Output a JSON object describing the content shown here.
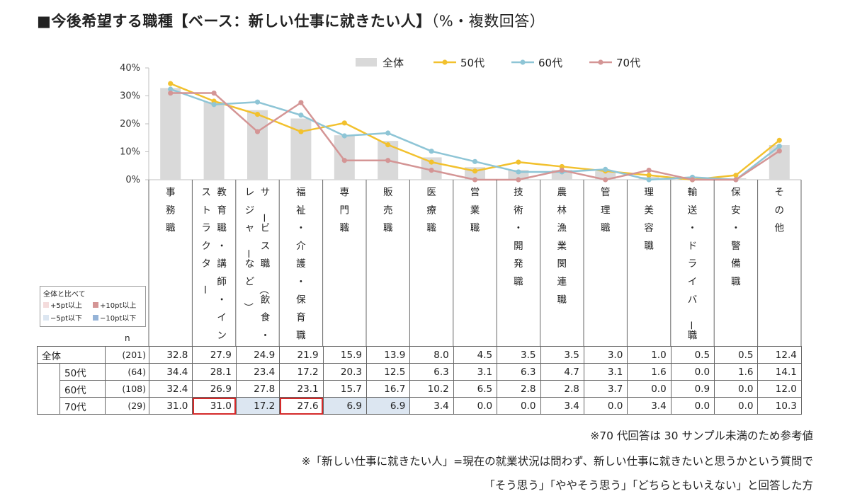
{
  "title": "■今後希望する職種【ベース：新しい仕事に就きたい人】",
  "title_suffix": "（%・複数回答）",
  "colors": {
    "total_bar": "#d9d9d9",
    "age50": "#f2c12e",
    "age60": "#8ec5d6",
    "age70": "#d49595",
    "grid_axis": "#bfbfbf",
    "highlight_red": "#d42a2a",
    "pink_light": "#f4dcdc",
    "pink_dark": "#d49595",
    "blue_light": "#dce6f1",
    "blue_dark": "#95b3d7"
  },
  "legend_box": {
    "title": "全体と比べて",
    "items": [
      "+5pt以上",
      "+10pt以上",
      "−5pt以下",
      "−10pt以下"
    ]
  },
  "chart_data": {
    "type": "bar",
    "categories": [
      "事務職",
      "教育職・講師・インストラクター",
      "サービス職（飲食・レジャーなど）",
      "福祉・介護・保育職",
      "専門職",
      "販売職",
      "医療職",
      "営業職",
      "技術・開発職",
      "農林漁業関連職",
      "管理職",
      "理美容職",
      "輸送・ドライバー職",
      "保安・警備職",
      "その他"
    ],
    "category_label_lines": [
      [
        "事務職"
      ],
      [
        "教育職・講師・イン",
        "ストラクター"
      ],
      [
        "サービス職（飲食・",
        "レジャーなど）"
      ],
      [
        "福祉・介護・保育職"
      ],
      [
        "専門職"
      ],
      [
        "販売職"
      ],
      [
        "医療職"
      ],
      [
        "営業職"
      ],
      [
        "技術・開発職"
      ],
      [
        "農林漁業関連職"
      ],
      [
        "管理職"
      ],
      [
        "理美容職"
      ],
      [
        "輸送・ドライバー職"
      ],
      [
        "保安・警備職"
      ],
      [
        "その他"
      ]
    ],
    "series": [
      {
        "name": "全体",
        "type": "bar",
        "n": "(201)",
        "values": [
          32.8,
          27.9,
          24.9,
          21.9,
          15.9,
          13.9,
          8.0,
          4.5,
          3.5,
          3.5,
          3.0,
          1.0,
          0.5,
          0.5,
          12.4
        ]
      },
      {
        "name": "50代",
        "type": "line",
        "n": "(64)",
        "values": [
          34.4,
          28.1,
          23.4,
          17.2,
          20.3,
          12.5,
          6.3,
          3.1,
          6.3,
          4.7,
          3.1,
          1.6,
          0.0,
          1.6,
          14.1
        ]
      },
      {
        "name": "60代",
        "type": "line",
        "n": "(108)",
        "values": [
          32.4,
          26.9,
          27.8,
          23.1,
          15.7,
          16.7,
          10.2,
          6.5,
          2.8,
          2.8,
          3.7,
          0.0,
          0.9,
          0.0,
          12.0
        ]
      },
      {
        "name": "70代",
        "type": "line",
        "n": "(29)",
        "values": [
          31.0,
          31.0,
          17.2,
          27.6,
          6.9,
          6.9,
          3.4,
          0.0,
          0.0,
          3.4,
          0.0,
          3.4,
          0.0,
          0.0,
          10.3
        ]
      }
    ],
    "y_ticks": [
      "0%",
      "10%",
      "20%",
      "30%",
      "40%"
    ],
    "ylim": [
      0,
      40
    ],
    "grid": false,
    "legend_position": "top",
    "n_header": "n",
    "highlights_70": {
      "red_outline": [
        1,
        3
      ],
      "blue_fill": [
        2,
        4,
        5
      ]
    }
  },
  "notes": [
    "※70 代回答は 30 サンプル未満のため参考値",
    "※「新しい仕事に就きたい人」=現在の就業状況は問わず、新しい仕事に就きたいと思うかという質問で",
    "「そう思う」「ややそう思う」「どちらともいえない」と回答した方"
  ]
}
